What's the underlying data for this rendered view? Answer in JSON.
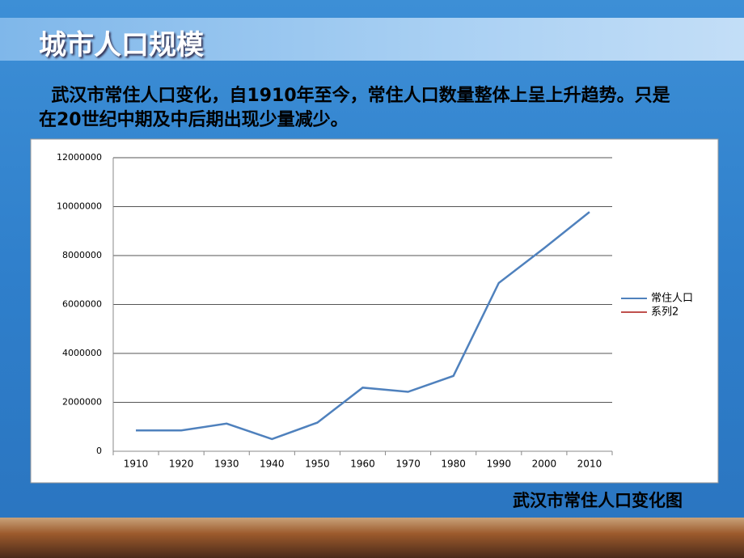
{
  "slide": {
    "title": "城市人口规模",
    "text": "武汉市常住人口变化，自1910年至今，常住人口数量整体上呈上升趋势。只是在20世纪中期及中后期出现少量减少。",
    "caption": "武汉市常住人口变化图"
  },
  "chart_data": {
    "type": "line",
    "categories": [
      "1910",
      "1920",
      "1930",
      "1940",
      "1950",
      "1960",
      "1970",
      "1980",
      "1990",
      "2000",
      "2010"
    ],
    "series": [
      {
        "name": "常住人口",
        "color": "#4f81bd",
        "values": [
          850000,
          850000,
          1130000,
          500000,
          1170000,
          2600000,
          2430000,
          3080000,
          6880000,
          8300000,
          9780000
        ]
      },
      {
        "name": "系列2",
        "color": "#c0504d",
        "values": [
          null,
          null,
          null,
          null,
          null,
          null,
          null,
          null,
          null,
          null,
          null
        ]
      }
    ],
    "ylim": [
      0,
      12000000
    ],
    "yticks": [
      0,
      2000000,
      4000000,
      6000000,
      8000000,
      10000000,
      12000000
    ],
    "grid": true,
    "legend": "right"
  }
}
